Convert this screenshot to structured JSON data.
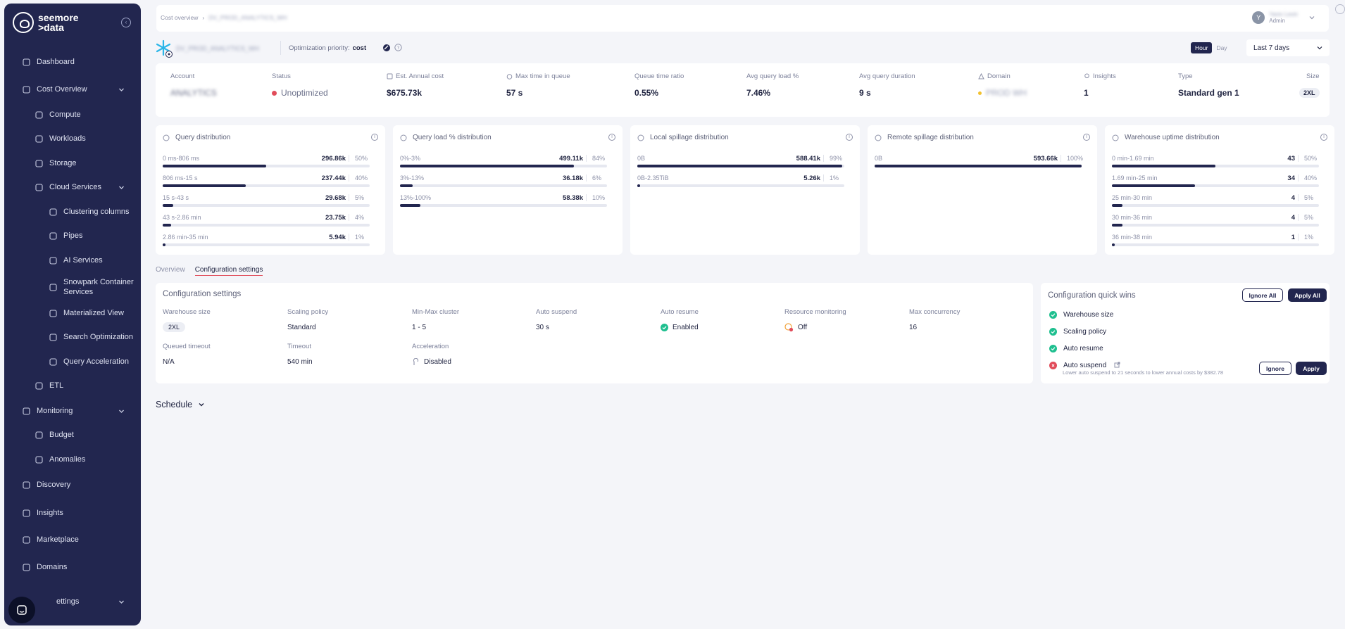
{
  "sidebar": {
    "brand_line1": "seemore",
    "brand_line2": ">data",
    "items": [
      {
        "label": "Dashboard",
        "icon": "dashboard-icon"
      },
      {
        "label": "Cost Overview",
        "icon": "dollar-icon"
      },
      {
        "label": "Compute",
        "icon": "settings-icon"
      },
      {
        "label": "Workloads",
        "icon": "cube-icon"
      },
      {
        "label": "Storage",
        "icon": "database-icon"
      },
      {
        "label": "Cloud Services",
        "icon": "cloud-settings-icon"
      },
      {
        "label": "Clustering columns",
        "icon": "grid-icon"
      },
      {
        "label": "Pipes",
        "icon": "pipe-icon"
      },
      {
        "label": "AI Services",
        "icon": "sparkle-icon"
      },
      {
        "label": "Snowpark Container Services",
        "icon": "container-icon"
      },
      {
        "label": "Materialized View",
        "icon": "view-icon"
      },
      {
        "label": "Search Optimization",
        "icon": "search-icon"
      },
      {
        "label": "Query Acceleration",
        "icon": "query-icon"
      },
      {
        "label": "ETL",
        "icon": "etl-icon"
      },
      {
        "label": "Monitoring",
        "icon": "monitor-icon"
      },
      {
        "label": "Budget",
        "icon": "budget-icon"
      },
      {
        "label": "Anomalies",
        "icon": "warning-icon"
      },
      {
        "label": "Discovery",
        "icon": "compass-icon"
      },
      {
        "label": "Insights",
        "icon": "lightbulb-icon"
      },
      {
        "label": "Marketplace",
        "icon": "thumbs-up-icon"
      },
      {
        "label": "Domains",
        "icon": "domains-icon"
      },
      {
        "label": "ettings",
        "icon": "gear-icon"
      }
    ]
  },
  "header": {
    "breadcrumb_root": "Cost overview",
    "breadcrumb_current": "DV_PROD_ANALYTICS_WH",
    "user_initial": "Y",
    "user_name": "Yaniv Levin",
    "user_role": "Admin"
  },
  "warehouse": {
    "name": "DV_PROD_ANALYTICS_WH",
    "priority_label": "Optimization priority:",
    "priority_value": "cost",
    "toggle": [
      "Hour",
      "Day"
    ],
    "range": "Last 7 days"
  },
  "summary": {
    "account_label": "Account",
    "account_value": "ANALYTICS",
    "status_label": "Status",
    "status_value": "Unoptimized",
    "cost_label": "Est. Annual cost",
    "cost_value": "$675.73k",
    "queue_label": "Max time in queue",
    "queue_value": "57 s",
    "ratio_label": "Queue time ratio",
    "ratio_value": "0.55%",
    "load_label": "Avg query load %",
    "load_value": "7.46%",
    "duration_label": "Avg query duration",
    "duration_value": "9 s",
    "domain_label": "Domain",
    "domain_value": "PROD WH",
    "insights_label": "Insights",
    "insights_value": "1",
    "type_label": "Type",
    "type_value": "Standard gen 1",
    "size_label": "Size",
    "size_value": "2XL"
  },
  "distributions": [
    {
      "title": "Query distribution",
      "icon": "clock-icon",
      "rows": [
        {
          "label": "0 ms-806 ms",
          "value": "296.86k",
          "pct": "50%",
          "fill": 0.5
        },
        {
          "label": "806 ms-15 s",
          "value": "237.44k",
          "pct": "40%",
          "fill": 0.4
        },
        {
          "label": "15 s-43 s",
          "value": "29.68k",
          "pct": "5%",
          "fill": 0.05
        },
        {
          "label": "43 s-2.86 min",
          "value": "23.75k",
          "pct": "4%",
          "fill": 0.04
        },
        {
          "label": "2.86 min-35 min",
          "value": "5.94k",
          "pct": "1%",
          "fill": 0.01
        }
      ]
    },
    {
      "title": "Query load % distribution",
      "icon": "document-icon",
      "rows": [
        {
          "label": "0%-3%",
          "value": "499.11k",
          "pct": "84%",
          "fill": 0.84
        },
        {
          "label": "3%-13%",
          "value": "36.18k",
          "pct": "6%",
          "fill": 0.06
        },
        {
          "label": "13%-100%",
          "value": "58.38k",
          "pct": "10%",
          "fill": 0.1
        }
      ]
    },
    {
      "title": "Local spillage distribution",
      "icon": "spill-icon",
      "rows": [
        {
          "label": "0B",
          "value": "588.41k",
          "pct": "99%",
          "fill": 0.99
        },
        {
          "label": "0B-2.35TiB",
          "value": "5.26k",
          "pct": "1%",
          "fill": 0.01
        }
      ]
    },
    {
      "title": "Remote spillage distribution",
      "icon": "cloud-icon",
      "rows": [
        {
          "label": "0B",
          "value": "593.66k",
          "pct": "100%",
          "fill": 1.0
        }
      ]
    },
    {
      "title": "Warehouse uptime distribution",
      "icon": "uptime-icon",
      "rows": [
        {
          "label": "0 min-1.69 min",
          "value": "43",
          "pct": "50%",
          "fill": 0.5
        },
        {
          "label": "1.69 min-25 min",
          "value": "34",
          "pct": "40%",
          "fill": 0.4
        },
        {
          "label": "25 min-30 min",
          "value": "4",
          "pct": "5%",
          "fill": 0.05
        },
        {
          "label": "30 min-36 min",
          "value": "4",
          "pct": "5%",
          "fill": 0.05
        },
        {
          "label": "36 min-38 min",
          "value": "1",
          "pct": "1%",
          "fill": 0.01
        }
      ]
    }
  ],
  "tabs": [
    "Overview",
    "Configuration settings"
  ],
  "config": {
    "title": "Configuration settings",
    "fields": [
      {
        "label": "Warehouse size",
        "value": "2XL"
      },
      {
        "label": "Scaling policy",
        "value": "Standard"
      },
      {
        "label": "Min-Max cluster",
        "value": "1 - 5"
      },
      {
        "label": "Auto suspend",
        "value": "30 s"
      },
      {
        "label": "Auto resume",
        "value": "Enabled"
      },
      {
        "label": "Resource monitoring",
        "value": "Off"
      },
      {
        "label": "Max concurrency",
        "value": "16"
      },
      {
        "label": "Queued timeout",
        "value": "N/A"
      },
      {
        "label": "Timeout",
        "value": "540 min"
      },
      {
        "label": "Acceleration",
        "value": "Disabled"
      }
    ]
  },
  "quick_wins": {
    "title": "Configuration quick wins",
    "ignore_all": "Ignore All",
    "apply_all": "Apply All",
    "items": [
      {
        "label": "Warehouse size",
        "status": "ok"
      },
      {
        "label": "Scaling policy",
        "status": "ok"
      },
      {
        "label": "Auto resume",
        "status": "ok"
      },
      {
        "label": "Auto suspend",
        "status": "issue"
      }
    ],
    "suspend_note": "Lower auto suspend to 21 seconds to lower annual costs by $382.78",
    "ignore": "Ignore",
    "apply": "Apply"
  },
  "schedule": "Schedule",
  "colors": {
    "sidebar": "#22264f",
    "accent": "#22264f",
    "success": "#1fbf8f",
    "danger": "#e14c5a",
    "warning": "#f2c12e"
  }
}
